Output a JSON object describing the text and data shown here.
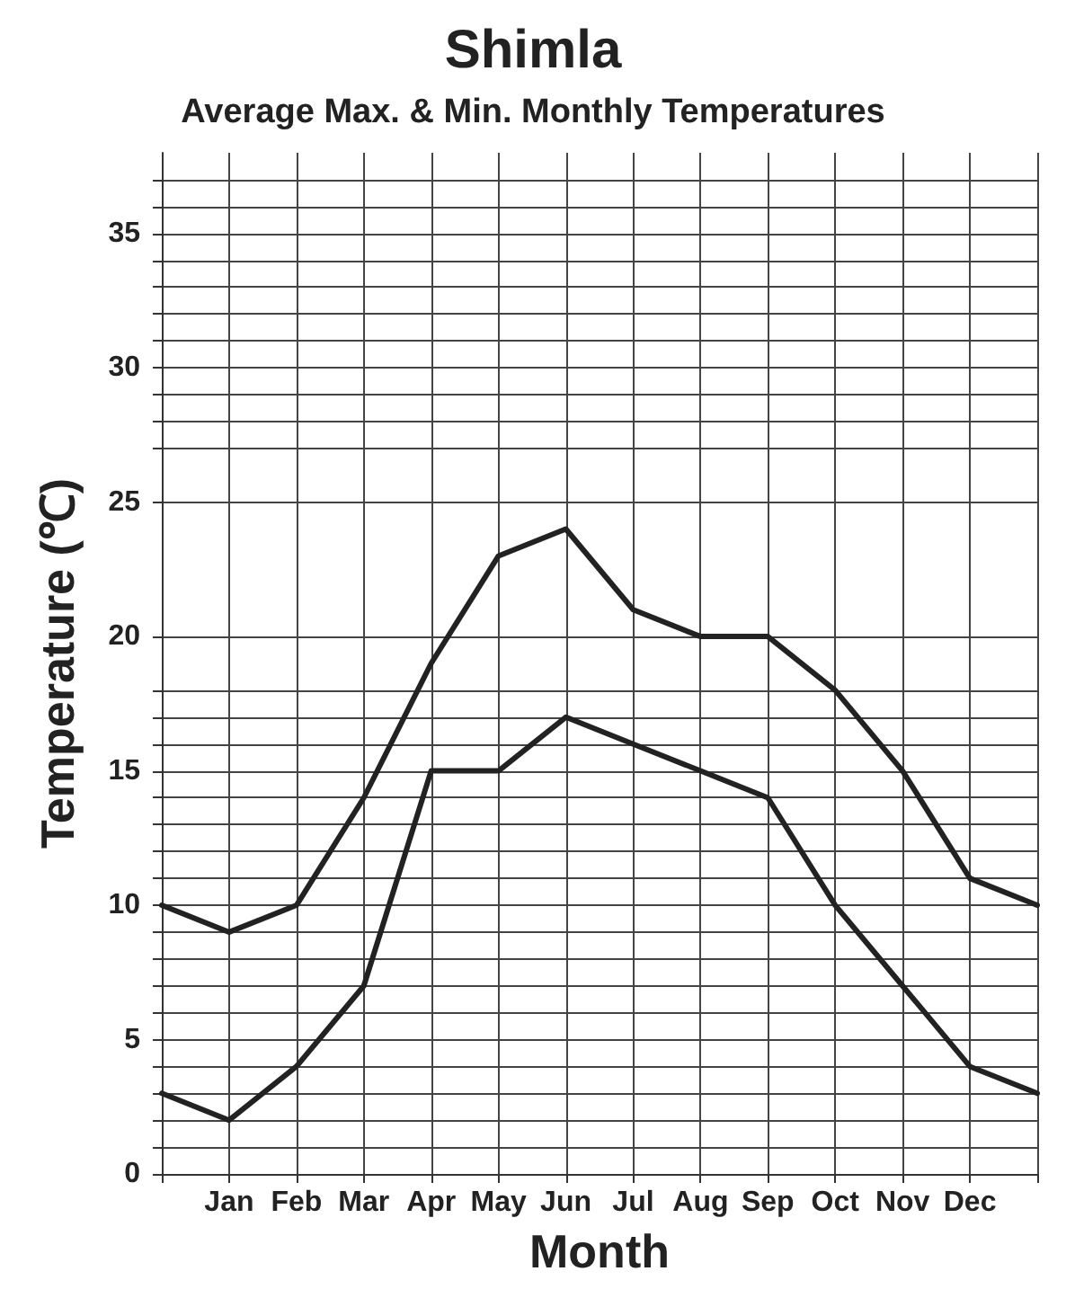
{
  "chart_data": {
    "type": "line",
    "title": "Shimla",
    "subtitle": "Average Max. & Min. Monthly Temperatures",
    "xlabel": "Month",
    "ylabel": "Temperature (℃)",
    "categories": [
      null,
      "Jan",
      "Feb",
      "Mar",
      "Apr",
      "May",
      "Jun",
      "Jul",
      "Aug",
      "Sep",
      "Oct",
      "Nov",
      "Dec",
      null
    ],
    "series": [
      {
        "color": "#222222",
        "values": [
          10,
          9,
          10,
          14,
          19,
          23,
          24,
          21,
          20,
          20,
          18,
          15,
          11,
          10
        ]
      },
      {
        "color": "#222222",
        "values": [
          3,
          2,
          4,
          7,
          15,
          15,
          17,
          16,
          15,
          14,
          10,
          7,
          4,
          3
        ]
      }
    ],
    "ylim": [
      0,
      38
    ],
    "yticks": [
      0,
      {
        "value": 1,
        "label": null
      },
      {
        "value": 2,
        "label": null
      },
      {
        "value": 3,
        "label": null
      },
      {
        "value": 4,
        "label": null
      },
      5,
      {
        "value": 6,
        "label": null
      },
      {
        "value": 7,
        "label": null
      },
      {
        "value": 8,
        "label": null
      },
      {
        "value": 9,
        "label": null
      },
      10,
      {
        "value": 11,
        "label": null
      },
      {
        "value": 12,
        "label": null
      },
      {
        "value": 13,
        "label": null
      },
      {
        "value": 14,
        "label": null
      },
      15,
      {
        "value": 16,
        "label": null
      },
      {
        "value": 17,
        "label": null
      },
      {
        "value": 18,
        "label": null
      },
      20,
      25,
      {
        "value": 27,
        "label": null
      },
      {
        "value": 28,
        "label": null
      },
      {
        "value": 29,
        "label": null
      },
      30,
      {
        "value": 31,
        "label": null
      },
      {
        "value": 32,
        "label": null
      },
      {
        "value": 33,
        "label": null
      },
      {
        "value": 34,
        "label": null
      },
      35,
      {
        "value": 36,
        "label": null
      },
      {
        "value": 37,
        "label": null
      }
    ],
    "grid": true,
    "marker": "none",
    "line_style": "solid"
  }
}
